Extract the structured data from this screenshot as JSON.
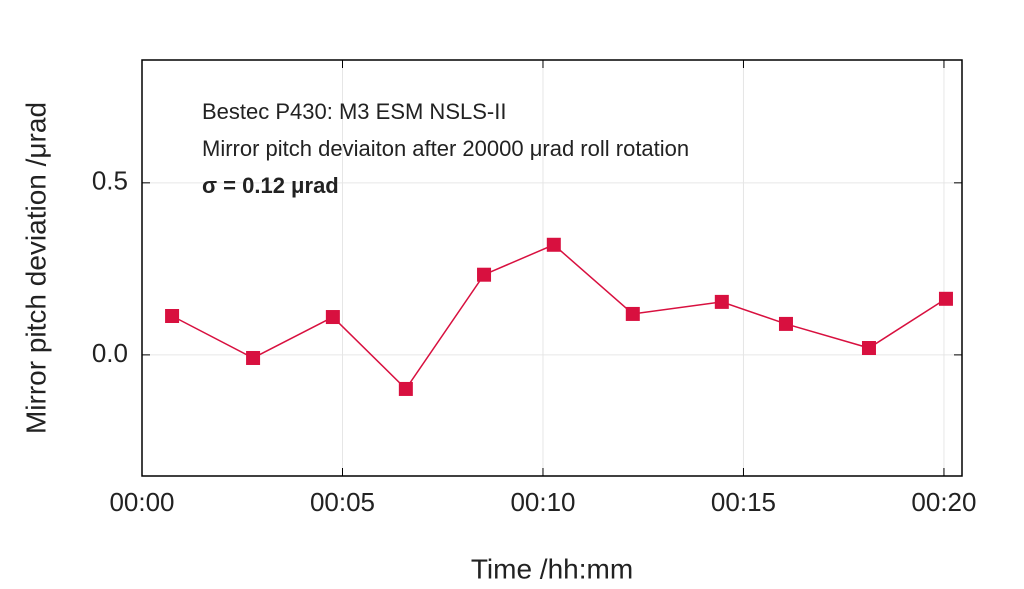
{
  "chart_data": {
    "type": "line",
    "annotations": [
      "Bestec P430: M3 ESM NSLS-II",
      "Mirror pitch deviaiton after 20000 μrad roll rotation",
      "σ = 0.12 μrad"
    ],
    "xlabel": "Time /hh:mm",
    "ylabel": "Mirror pitch deviation /μrad",
    "x": [
      0.75,
      2.77,
      4.76,
      6.58,
      8.53,
      10.27,
      12.24,
      14.46,
      16.06,
      18.13,
      20.05
    ],
    "series": [
      {
        "color": "#d8103f",
        "values": [
          0.113,
          -0.009,
          0.11,
          -0.099,
          0.233,
          0.32,
          0.119,
          0.154,
          0.09,
          0.02,
          0.163
        ]
      }
    ],
    "xlim": [
      0,
      20.45
    ],
    "ylim": [
      -0.352,
      0.857
    ],
    "xticks": [
      {
        "value": 0,
        "label": "00:00"
      },
      {
        "value": 5,
        "label": "00:05"
      },
      {
        "value": 10,
        "label": "00:10"
      },
      {
        "value": 15,
        "label": "00:15"
      },
      {
        "value": 20,
        "label": "00:20"
      }
    ],
    "yticks": [
      {
        "value": 0,
        "label": "0.0"
      },
      {
        "value": 0.5,
        "label": "0.5"
      }
    ],
    "grid": true
  }
}
